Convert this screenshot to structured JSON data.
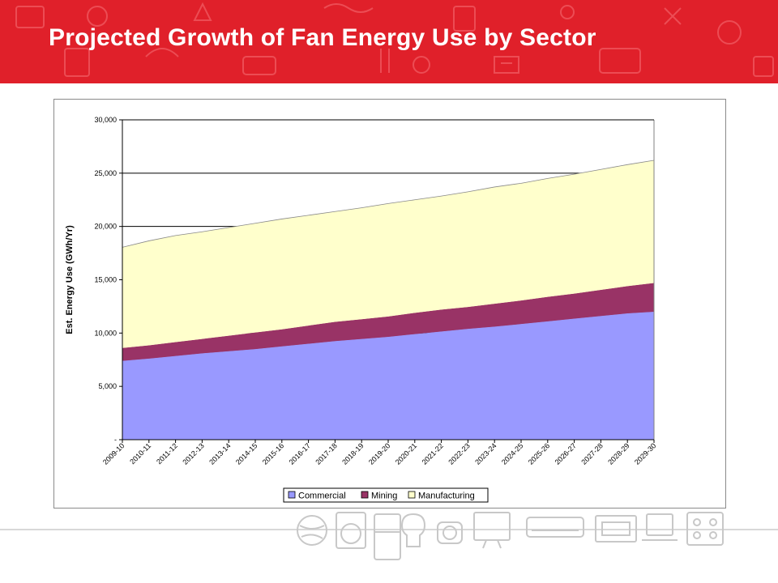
{
  "slide": {
    "title": "Projected Growth of Fan Energy Use by Sector",
    "header_color": "#e0202a"
  },
  "chart_data": {
    "type": "area",
    "stacked": true,
    "title": "",
    "xlabel": "",
    "ylabel": "Est. Energy Use (GWh/Yr)",
    "ylim": [
      0,
      30000
    ],
    "yticks": [
      0,
      5000,
      10000,
      15000,
      20000,
      25000,
      30000
    ],
    "ytick_labels": [
      "-",
      "5,000",
      "10,000",
      "15,000",
      "20,000",
      "25,000",
      "30,000"
    ],
    "grid": true,
    "legend_position": "bottom",
    "categories": [
      "2009-10",
      "2010-11",
      "2011-12",
      "2012-13",
      "2013-14",
      "2014-15",
      "2015-16",
      "2016-17",
      "2017-18",
      "2018-19",
      "2019-20",
      "2020-21",
      "2021-22",
      "2022-23",
      "2023-24",
      "2024-25",
      "2025-26",
      "2026-27",
      "2027-28",
      "2028-29",
      "2029-30"
    ],
    "series": [
      {
        "name": "Commercial",
        "color": "#9999ff",
        "values": [
          7400,
          7600,
          7850,
          8100,
          8300,
          8500,
          8750,
          9000,
          9250,
          9450,
          9650,
          9900,
          10150,
          10400,
          10600,
          10850,
          11100,
          11350,
          11600,
          11850,
          12000
        ]
      },
      {
        "name": "Mining",
        "color": "#993366",
        "values": [
          1200,
          1250,
          1300,
          1350,
          1450,
          1550,
          1600,
          1700,
          1800,
          1850,
          1900,
          2000,
          2050,
          2050,
          2150,
          2200,
          2300,
          2350,
          2450,
          2550,
          2700
        ]
      },
      {
        "name": "Manufacturing",
        "color": "#ffffcc",
        "values": [
          9450,
          9800,
          10000,
          10050,
          10150,
          10250,
          10350,
          10350,
          10350,
          10450,
          10600,
          10600,
          10650,
          10800,
          10950,
          11000,
          11100,
          11200,
          11300,
          11400,
          11500
        ]
      }
    ]
  }
}
